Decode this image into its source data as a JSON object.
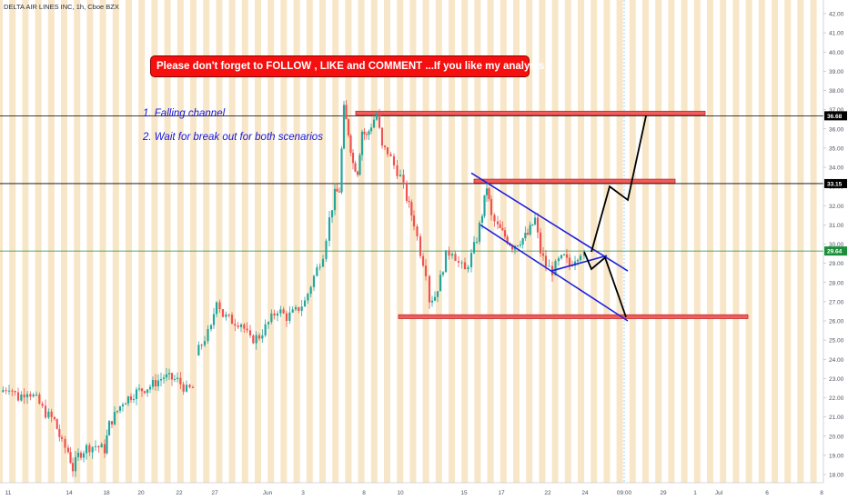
{
  "symbol_title": "DELTA AIR LINES INC, 1h, Cboe BZX",
  "banner": "Please don't forget  to FOLLOW , LIKE and COMMENT ...If you like my analysis:)",
  "annotations": [
    "1. Falling channel",
    "2. Wait for break out for both scenarios"
  ],
  "colors": {
    "up": "#26a69a",
    "down": "#ef5350",
    "zone_fill": "#f05d5d",
    "zone_border": "#c62828",
    "channel": "#1f22e0",
    "projection": "#000000",
    "banner_bg": "#f50f0f",
    "annotation_text": "#1515d8",
    "last_price": "#1b8f3a",
    "session_stripe": "#f6ddb6",
    "time_line": "#2196f3"
  },
  "chart_data": {
    "type": "candlestick",
    "symbol": "DELTA AIR LINES INC",
    "interval": "1h",
    "exchange": "Cboe BZX",
    "ylim": [
      17.6,
      43.0
    ],
    "y_ticks": [
      "18.00",
      "19.00",
      "20.00",
      "21.00",
      "22.00",
      "23.00",
      "24.00",
      "25.00",
      "26.00",
      "27.00",
      "28.00",
      "29.00",
      "30.00",
      "31.00",
      "32.00",
      "33.00",
      "34.00",
      "35.00",
      "36.00",
      "37.00",
      "38.00",
      "39.00",
      "40.00",
      "41.00",
      "42.00"
    ],
    "x_ticks": [
      "11",
      "14",
      "18",
      "20",
      "22",
      "27",
      "Jun",
      "3",
      "8",
      "10",
      "15",
      "17",
      "22",
      "24",
      "09:00",
      "29",
      "1",
      "Jul",
      "6",
      "8"
    ],
    "horizontal_lines": [
      {
        "label": "36.68",
        "value": 36.68,
        "color": "#000000"
      },
      {
        "label": "33.15",
        "value": 33.15,
        "color": "#000000"
      },
      {
        "label": "29.64",
        "value": 29.64,
        "color": "#1b8f3a"
      }
    ],
    "price_path": [
      {
        "x": 0,
        "y": 22.3
      },
      {
        "x": 10,
        "y": 22.6
      },
      {
        "x": 20,
        "y": 22.0
      },
      {
        "x": 30,
        "y": 22.4
      },
      {
        "x": 40,
        "y": 21.9
      },
      {
        "x": 50,
        "y": 21.2
      },
      {
        "x": 60,
        "y": 20.8
      },
      {
        "x": 68,
        "y": 19.6
      },
      {
        "x": 75,
        "y": 19.2
      },
      {
        "x": 80,
        "y": 18.3
      },
      {
        "x": 86,
        "y": 19.0
      },
      {
        "x": 95,
        "y": 19.4
      },
      {
        "x": 105,
        "y": 19.5
      },
      {
        "x": 115,
        "y": 19.3
      },
      {
        "x": 120,
        "y": 20.6
      },
      {
        "x": 135,
        "y": 21.8
      },
      {
        "x": 150,
        "y": 22.3
      },
      {
        "x": 165,
        "y": 22.6
      },
      {
        "x": 180,
        "y": 23.1
      },
      {
        "x": 195,
        "y": 22.9
      },
      {
        "x": 205,
        "y": 22.4
      },
      {
        "x": 212,
        "y": 22.5
      },
      {
        "x": 215,
        "y": 24.2
      },
      {
        "x": 225,
        "y": 25.1
      },
      {
        "x": 232,
        "y": 25.6
      },
      {
        "x": 238,
        "y": 27.2
      },
      {
        "x": 245,
        "y": 26.3
      },
      {
        "x": 255,
        "y": 26.0
      },
      {
        "x": 265,
        "y": 25.9
      },
      {
        "x": 275,
        "y": 25.0
      },
      {
        "x": 285,
        "y": 25.2
      },
      {
        "x": 295,
        "y": 25.9
      },
      {
        "x": 305,
        "y": 26.6
      },
      {
        "x": 315,
        "y": 26.2
      },
      {
        "x": 325,
        "y": 26.5
      },
      {
        "x": 335,
        "y": 27.0
      },
      {
        "x": 345,
        "y": 28.3
      },
      {
        "x": 355,
        "y": 29.5
      },
      {
        "x": 362,
        "y": 31.3
      },
      {
        "x": 368,
        "y": 32.6
      },
      {
        "x": 373,
        "y": 32.8
      },
      {
        "x": 378,
        "y": 37.0
      },
      {
        "x": 383,
        "y": 35.8
      },
      {
        "x": 388,
        "y": 34.2
      },
      {
        "x": 393,
        "y": 33.8
      },
      {
        "x": 398,
        "y": 35.9
      },
      {
        "x": 403,
        "y": 35.6
      },
      {
        "x": 408,
        "y": 36.2
      },
      {
        "x": 414,
        "y": 36.8
      },
      {
        "x": 420,
        "y": 35.0
      },
      {
        "x": 426,
        "y": 34.8
      },
      {
        "x": 433,
        "y": 34.1
      },
      {
        "x": 440,
        "y": 33.5
      },
      {
        "x": 447,
        "y": 32.4
      },
      {
        "x": 455,
        "y": 31.1
      },
      {
        "x": 462,
        "y": 29.6
      },
      {
        "x": 468,
        "y": 28.6
      },
      {
        "x": 472,
        "y": 27.1
      },
      {
        "x": 478,
        "y": 27.3
      },
      {
        "x": 484,
        "y": 28.2
      },
      {
        "x": 490,
        "y": 29.4
      },
      {
        "x": 497,
        "y": 29.7
      },
      {
        "x": 504,
        "y": 29.0
      },
      {
        "x": 511,
        "y": 28.6
      },
      {
        "x": 518,
        "y": 29.4
      },
      {
        "x": 524,
        "y": 30.3
      },
      {
        "x": 530,
        "y": 31.6
      },
      {
        "x": 535,
        "y": 33.0
      },
      {
        "x": 540,
        "y": 31.4
      },
      {
        "x": 547,
        "y": 30.9
      },
      {
        "x": 555,
        "y": 30.4
      },
      {
        "x": 563,
        "y": 29.9
      },
      {
        "x": 572,
        "y": 30.2
      },
      {
        "x": 580,
        "y": 30.5
      },
      {
        "x": 588,
        "y": 31.3
      },
      {
        "x": 594,
        "y": 29.6
      },
      {
        "x": 600,
        "y": 28.9
      },
      {
        "x": 607,
        "y": 28.6
      },
      {
        "x": 614,
        "y": 29.1
      },
      {
        "x": 620,
        "y": 29.3
      },
      {
        "x": 626,
        "y": 28.9
      },
      {
        "x": 632,
        "y": 29.3
      },
      {
        "x": 638,
        "y": 29.6
      },
      {
        "x": 642,
        "y": 29.3
      }
    ],
    "resistance_zones": [
      {
        "x_start": 391,
        "x_end": 775,
        "y_low": 36.72,
        "y_high": 36.92
      },
      {
        "x_start": 521,
        "x_end": 742,
        "y_low": 33.18,
        "y_high": 33.38
      },
      {
        "x_start": 438,
        "x_end": 822,
        "y_low": 26.12,
        "y_high": 26.32
      }
    ],
    "channel_lines": [
      {
        "from": {
          "x": 518,
          "y": 33.7
        },
        "to": {
          "x": 690,
          "y": 28.6
        }
      },
      {
        "from": {
          "x": 528,
          "y": 31.0
        },
        "to": {
          "x": 690,
          "y": 26.0
        }
      },
      {
        "from": {
          "x": 606,
          "y": 28.6
        },
        "to": {
          "x": 667,
          "y": 29.4
        }
      }
    ],
    "scenarios": [
      {
        "name": "breakout_up",
        "points": [
          {
            "x": 650,
            "y": 29.6
          },
          {
            "x": 670,
            "y": 33.0
          },
          {
            "x": 690,
            "y": 32.3
          },
          {
            "x": 710,
            "y": 36.68
          }
        ]
      },
      {
        "name": "breakdown",
        "points": [
          {
            "x": 642,
            "y": 29.6
          },
          {
            "x": 650,
            "y": 28.7
          },
          {
            "x": 665,
            "y": 29.3
          },
          {
            "x": 688,
            "y": 26.2
          }
        ]
      }
    ],
    "grid": false,
    "session_stripes": true
  }
}
